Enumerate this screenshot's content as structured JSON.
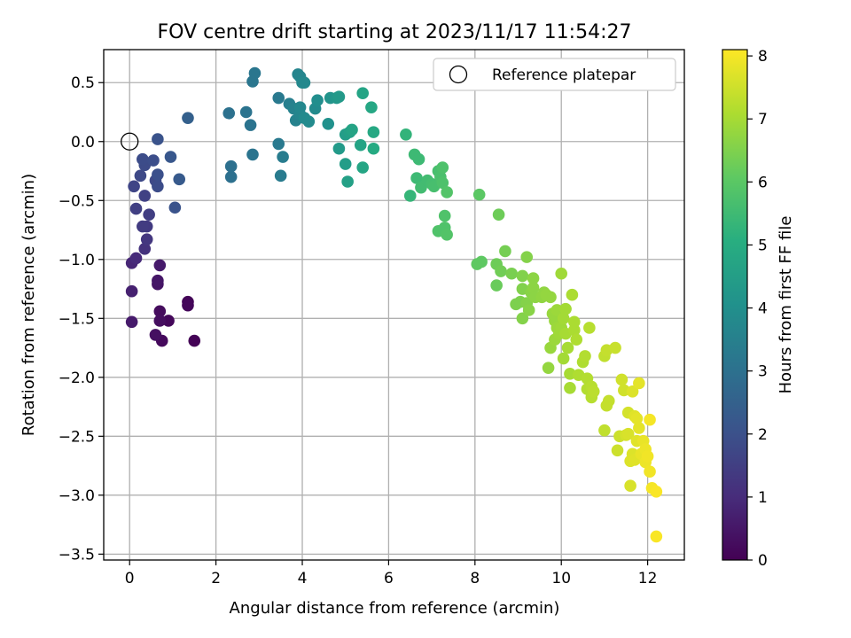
{
  "chart_data": {
    "type": "scatter",
    "title": "FOV centre drift starting at 2023/11/17 11:54:27",
    "xlabel": "Angular distance from reference (arcmin)",
    "ylabel": "Rotation from reference (arcmin)",
    "xlim": [
      -0.6,
      12.85
    ],
    "ylim": [
      -3.55,
      0.78
    ],
    "x_ticks": [
      0,
      2,
      4,
      6,
      8,
      10,
      12
    ],
    "y_ticks": [
      -3.5,
      -3.0,
      -2.5,
      -2.0,
      -1.5,
      -1.0,
      -0.5,
      0.0,
      0.5
    ],
    "x_tick_labels": [
      "0",
      "2",
      "4",
      "6",
      "8",
      "10",
      "12"
    ],
    "y_tick_labels": [
      "−3.5",
      "−3.0",
      "−2.5",
      "−2.0",
      "−1.5",
      "−1.0",
      "−0.5",
      "0.0",
      "0.5"
    ],
    "grid": true,
    "legend": {
      "position": "top-right",
      "entries": [
        "Reference platepar"
      ]
    },
    "reference_point": {
      "x": 0,
      "y": 0
    },
    "colorbar": {
      "label": "Hours from first FF file",
      "range": [
        0,
        8.1
      ],
      "ticks": [
        0,
        1,
        2,
        3,
        4,
        5,
        6,
        7,
        8
      ],
      "tick_labels": [
        "0",
        "1",
        "2",
        "3",
        "4",
        "5",
        "6",
        "7",
        "8"
      ],
      "colormap": "viridis"
    },
    "points": [
      [
        1.5,
        -1.69,
        0.05
      ],
      [
        0.75,
        -1.69,
        0.2
      ],
      [
        0.6,
        -1.64,
        0.35
      ],
      [
        0.9,
        -1.52,
        0.15
      ],
      [
        0.7,
        -1.44,
        0.25
      ],
      [
        0.7,
        -1.52,
        0.3
      ],
      [
        1.35,
        -1.36,
        0.1
      ],
      [
        1.35,
        -1.39,
        0.15
      ],
      [
        0.65,
        -1.21,
        0.45
      ],
      [
        0.65,
        -1.18,
        0.5
      ],
      [
        0.7,
        -1.05,
        0.6
      ],
      [
        0.05,
        -1.53,
        0.6
      ],
      [
        0.05,
        -1.27,
        0.75
      ],
      [
        0.05,
        -1.03,
        0.9
      ],
      [
        0.15,
        -0.99,
        1.0
      ],
      [
        0.35,
        -0.91,
        1.2
      ],
      [
        0.4,
        -0.83,
        1.3
      ],
      [
        0.4,
        -0.72,
        1.4
      ],
      [
        0.3,
        -0.72,
        1.45
      ],
      [
        0.45,
        -0.62,
        1.5
      ],
      [
        0.15,
        -0.57,
        1.55
      ],
      [
        0.35,
        -0.46,
        1.6
      ],
      [
        0.1,
        -0.38,
        1.7
      ],
      [
        0.25,
        -0.29,
        1.8
      ],
      [
        0.35,
        -0.2,
        1.85
      ],
      [
        0.3,
        -0.15,
        1.9
      ],
      [
        0.55,
        -0.16,
        1.95
      ],
      [
        0.6,
        -0.33,
        1.8
      ],
      [
        0.65,
        -0.38,
        1.9
      ],
      [
        0.65,
        -0.28,
        2.0
      ],
      [
        0.65,
        0.02,
        2.1
      ],
      [
        0.95,
        -0.13,
        2.2
      ],
      [
        1.05,
        -0.56,
        2.1
      ],
      [
        1.15,
        -0.32,
        2.3
      ],
      [
        1.35,
        0.2,
        2.5
      ],
      [
        2.35,
        -0.3,
        3.0
      ],
      [
        2.35,
        -0.21,
        3.0
      ],
      [
        2.3,
        0.24,
        3.05
      ],
      [
        2.7,
        0.25,
        3.1
      ],
      [
        2.8,
        0.14,
        3.1
      ],
      [
        2.85,
        -0.11,
        3.15
      ],
      [
        2.85,
        0.51,
        3.2
      ],
      [
        2.9,
        0.58,
        3.2
      ],
      [
        3.45,
        0.37,
        3.3
      ],
      [
        3.45,
        -0.02,
        3.3
      ],
      [
        3.5,
        -0.29,
        3.35
      ],
      [
        3.55,
        -0.13,
        3.4
      ],
      [
        3.7,
        0.32,
        3.5
      ],
      [
        3.8,
        0.28,
        3.6
      ],
      [
        3.85,
        0.18,
        3.6
      ],
      [
        3.9,
        0.57,
        3.65
      ],
      [
        3.95,
        0.55,
        3.7
      ],
      [
        3.95,
        0.23,
        3.7
      ],
      [
        3.95,
        0.29,
        3.75
      ],
      [
        4.0,
        0.5,
        3.8
      ],
      [
        4.05,
        0.5,
        3.8
      ],
      [
        4.05,
        0.2,
        3.85
      ],
      [
        4.15,
        0.17,
        3.9
      ],
      [
        4.3,
        0.28,
        3.9
      ],
      [
        4.35,
        0.35,
        4.0
      ],
      [
        4.6,
        0.15,
        4.1
      ],
      [
        4.65,
        0.37,
        4.2
      ],
      [
        4.8,
        0.37,
        4.3
      ],
      [
        4.85,
        0.38,
        4.35
      ],
      [
        4.85,
        -0.06,
        4.4
      ],
      [
        5.0,
        -0.19,
        4.5
      ],
      [
        5.0,
        0.06,
        4.5
      ],
      [
        5.05,
        -0.34,
        4.6
      ],
      [
        5.1,
        0.08,
        4.6
      ],
      [
        5.15,
        0.1,
        4.7
      ],
      [
        5.35,
        -0.03,
        4.7
      ],
      [
        5.4,
        0.41,
        4.75
      ],
      [
        5.4,
        -0.22,
        4.8
      ],
      [
        5.6,
        0.29,
        4.85
      ],
      [
        5.65,
        0.08,
        4.9
      ],
      [
        5.65,
        -0.06,
        4.95
      ],
      [
        6.4,
        0.06,
        5.3
      ],
      [
        6.5,
        -0.46,
        5.35
      ],
      [
        6.6,
        -0.11,
        5.5
      ],
      [
        6.65,
        -0.31,
        5.5
      ],
      [
        6.7,
        -0.15,
        5.5
      ],
      [
        6.75,
        -0.39,
        5.6
      ],
      [
        6.9,
        -0.33,
        5.6
      ],
      [
        7.0,
        -0.36,
        5.65
      ],
      [
        7.05,
        -0.38,
        5.7
      ],
      [
        7.15,
        -0.25,
        5.7
      ],
      [
        7.2,
        -0.3,
        5.75
      ],
      [
        7.25,
        -0.35,
        5.8
      ],
      [
        7.25,
        -0.22,
        5.8
      ],
      [
        7.15,
        -0.76,
        5.85
      ],
      [
        7.3,
        -0.73,
        5.85
      ],
      [
        7.3,
        -0.63,
        5.85
      ],
      [
        7.35,
        -0.79,
        5.9
      ],
      [
        7.35,
        -0.43,
        5.9
      ],
      [
        8.1,
        -0.45,
        6.05
      ],
      [
        8.05,
        -1.04,
        6.1
      ],
      [
        8.15,
        -1.02,
        6.1
      ],
      [
        8.5,
        -1.22,
        6.25
      ],
      [
        8.5,
        -1.04,
        6.3
      ],
      [
        8.55,
        -0.62,
        6.3
      ],
      [
        8.6,
        -1.1,
        6.35
      ],
      [
        8.7,
        -0.93,
        6.4
      ],
      [
        8.85,
        -1.12,
        6.45
      ],
      [
        8.95,
        -1.38,
        6.5
      ],
      [
        9.05,
        -1.36,
        6.5
      ],
      [
        9.1,
        -1.14,
        6.55
      ],
      [
        9.1,
        -1.25,
        6.55
      ],
      [
        9.1,
        -1.5,
        6.6
      ],
      [
        9.2,
        -0.98,
        6.6
      ],
      [
        9.2,
        -1.37,
        6.6
      ],
      [
        9.25,
        -1.43,
        6.65
      ],
      [
        9.3,
        -1.28,
        6.65
      ],
      [
        9.35,
        -1.16,
        6.7
      ],
      [
        9.35,
        -1.24,
        6.7
      ],
      [
        9.4,
        -1.32,
        6.7
      ],
      [
        9.55,
        -1.32,
        6.75
      ],
      [
        9.6,
        -1.28,
        6.75
      ],
      [
        9.65,
        -1.3,
        6.8
      ],
      [
        9.7,
        -1.92,
        6.8
      ],
      [
        9.75,
        -1.32,
        6.8
      ],
      [
        9.75,
        -1.75,
        6.85
      ],
      [
        9.8,
        -1.46,
        6.85
      ],
      [
        9.85,
        -1.52,
        6.85
      ],
      [
        9.85,
        -1.68,
        6.9
      ],
      [
        9.9,
        -1.58,
        6.9
      ],
      [
        9.9,
        -1.43,
        6.9
      ],
      [
        9.95,
        -1.63,
        6.95
      ],
      [
        10.0,
        -1.12,
        6.95
      ],
      [
        10.0,
        -1.58,
        6.95
      ],
      [
        10.05,
        -1.5,
        7.0
      ],
      [
        10.05,
        -1.84,
        7.0
      ],
      [
        10.1,
        -1.42,
        7.0
      ],
      [
        10.1,
        -1.63,
        7.05
      ],
      [
        10.15,
        -1.75,
        7.05
      ],
      [
        10.2,
        -1.97,
        7.05
      ],
      [
        10.2,
        -2.09,
        7.05
      ],
      [
        10.25,
        -1.3,
        7.1
      ],
      [
        10.3,
        -1.6,
        7.1
      ],
      [
        10.3,
        -1.53,
        7.1
      ],
      [
        10.35,
        -1.68,
        7.15
      ],
      [
        10.4,
        -1.98,
        7.15
      ],
      [
        10.5,
        -1.87,
        7.15
      ],
      [
        10.55,
        -1.82,
        7.2
      ],
      [
        10.6,
        -2.1,
        7.2
      ],
      [
        10.6,
        -2.01,
        7.2
      ],
      [
        10.65,
        -1.58,
        7.25
      ],
      [
        10.7,
        -2.08,
        7.25
      ],
      [
        10.7,
        -2.17,
        7.25
      ],
      [
        10.75,
        -2.12,
        7.3
      ],
      [
        11.0,
        -1.82,
        7.35
      ],
      [
        11.0,
        -2.45,
        7.35
      ],
      [
        11.05,
        -2.24,
        7.4
      ],
      [
        11.05,
        -1.77,
        7.4
      ],
      [
        11.1,
        -2.2,
        7.4
      ],
      [
        11.25,
        -1.75,
        7.45
      ],
      [
        11.3,
        -2.62,
        7.5
      ],
      [
        11.35,
        -2.5,
        7.5
      ],
      [
        11.4,
        -2.02,
        7.55
      ],
      [
        11.45,
        -2.11,
        7.55
      ],
      [
        11.5,
        -2.49,
        7.6
      ],
      [
        11.55,
        -2.3,
        7.6
      ],
      [
        11.55,
        -2.48,
        7.65
      ],
      [
        11.6,
        -2.92,
        7.65
      ],
      [
        11.6,
        -2.71,
        7.7
      ],
      [
        11.65,
        -2.65,
        7.7
      ],
      [
        11.65,
        -2.12,
        7.7
      ],
      [
        11.7,
        -2.7,
        7.75
      ],
      [
        11.7,
        -2.33,
        7.75
      ],
      [
        11.75,
        -2.54,
        7.75
      ],
      [
        11.75,
        -2.35,
        7.8
      ],
      [
        11.8,
        -2.05,
        7.8
      ],
      [
        11.8,
        -2.43,
        7.8
      ],
      [
        11.85,
        -2.65,
        7.85
      ],
      [
        11.9,
        -2.54,
        7.85
      ],
      [
        11.95,
        -2.72,
        7.9
      ],
      [
        11.95,
        -2.61,
        7.9
      ],
      [
        12.0,
        -2.67,
        7.95
      ],
      [
        12.05,
        -2.8,
        7.95
      ],
      [
        12.05,
        -2.36,
        8.0
      ],
      [
        12.1,
        -2.94,
        8.0
      ],
      [
        12.2,
        -3.35,
        8.05
      ],
      [
        12.2,
        -2.97,
        8.05
      ]
    ]
  }
}
